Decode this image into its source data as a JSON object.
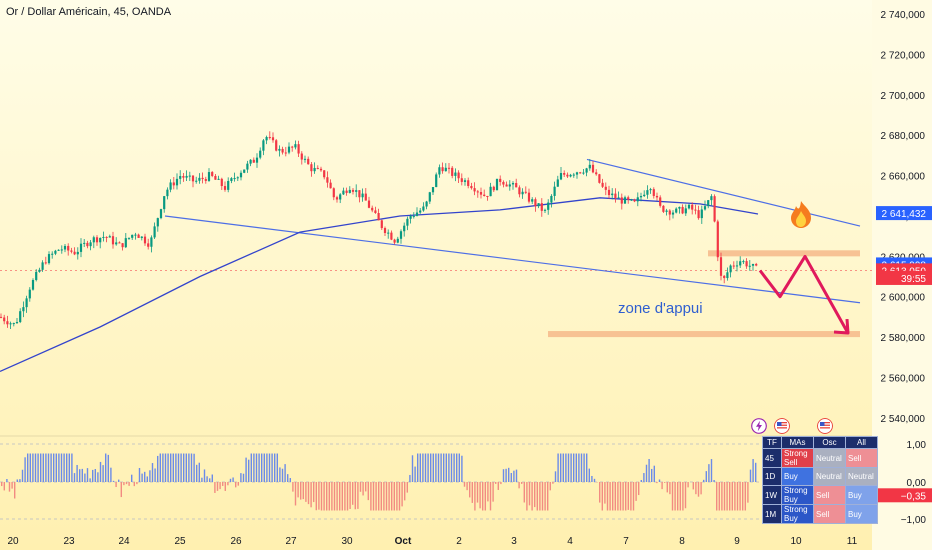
{
  "chart_title": "Or / Dollar Américain, 45, OANDA",
  "chart_data": {
    "type": "candlestick",
    "symbol": "XAUUSD",
    "timeframe": "45",
    "y_axis": {
      "range": [
        2531,
        2747
      ],
      "ticks": [
        "2 740,000",
        "2 720,000",
        "2 700,000",
        "2 680,000",
        "2 660,000",
        "2 640,000",
        "2 620,000",
        "2 600,000",
        "2 580,000",
        "2 560,000",
        "2 540,000"
      ]
    },
    "x_axis": {
      "labels": [
        "20",
        "23",
        "24",
        "25",
        "26",
        "27",
        "30",
        "Oct",
        "2",
        "3",
        "4",
        "7",
        "8",
        "9",
        "10",
        "11"
      ]
    },
    "price_path": [
      {
        "x": 0,
        "y": 2590
      },
      {
        "x": 15,
        "y": 2586
      },
      {
        "x": 30,
        "y": 2605
      },
      {
        "x": 45,
        "y": 2618
      },
      {
        "x": 60,
        "y": 2624
      },
      {
        "x": 75,
        "y": 2622
      },
      {
        "x": 90,
        "y": 2628
      },
      {
        "x": 105,
        "y": 2630
      },
      {
        "x": 120,
        "y": 2625
      },
      {
        "x": 135,
        "y": 2632
      },
      {
        "x": 150,
        "y": 2626
      },
      {
        "x": 165,
        "y": 2652
      },
      {
        "x": 180,
        "y": 2660
      },
      {
        "x": 195,
        "y": 2657
      },
      {
        "x": 210,
        "y": 2660
      },
      {
        "x": 225,
        "y": 2654
      },
      {
        "x": 240,
        "y": 2662
      },
      {
        "x": 255,
        "y": 2668
      },
      {
        "x": 265,
        "y": 2680
      },
      {
        "x": 280,
        "y": 2672
      },
      {
        "x": 295,
        "y": 2674
      },
      {
        "x": 310,
        "y": 2664
      },
      {
        "x": 325,
        "y": 2660
      },
      {
        "x": 335,
        "y": 2648
      },
      {
        "x": 350,
        "y": 2655
      },
      {
        "x": 365,
        "y": 2648
      },
      {
        "x": 380,
        "y": 2636
      },
      {
        "x": 395,
        "y": 2628
      },
      {
        "x": 410,
        "y": 2640
      },
      {
        "x": 425,
        "y": 2644
      },
      {
        "x": 440,
        "y": 2665
      },
      {
        "x": 455,
        "y": 2660
      },
      {
        "x": 470,
        "y": 2656
      },
      {
        "x": 485,
        "y": 2650
      },
      {
        "x": 500,
        "y": 2658
      },
      {
        "x": 515,
        "y": 2654
      },
      {
        "x": 530,
        "y": 2648
      },
      {
        "x": 545,
        "y": 2642
      },
      {
        "x": 560,
        "y": 2660
      },
      {
        "x": 575,
        "y": 2662
      },
      {
        "x": 590,
        "y": 2664
      },
      {
        "x": 605,
        "y": 2652
      },
      {
        "x": 620,
        "y": 2648
      },
      {
        "x": 635,
        "y": 2646
      },
      {
        "x": 650,
        "y": 2656
      },
      {
        "x": 660,
        "y": 2644
      },
      {
        "x": 675,
        "y": 2642
      },
      {
        "x": 690,
        "y": 2644
      },
      {
        "x": 700,
        "y": 2640
      },
      {
        "x": 712,
        "y": 2650
      },
      {
        "x": 718,
        "y": 2620
      },
      {
        "x": 722,
        "y": 2606
      },
      {
        "x": 730,
        "y": 2615
      },
      {
        "x": 740,
        "y": 2618
      },
      {
        "x": 748,
        "y": 2616
      },
      {
        "x": 758,
        "y": 2613
      }
    ],
    "moving_average": [
      {
        "x": 0,
        "y": 2563
      },
      {
        "x": 100,
        "y": 2585
      },
      {
        "x": 200,
        "y": 2610
      },
      {
        "x": 300,
        "y": 2632
      },
      {
        "x": 400,
        "y": 2640
      },
      {
        "x": 500,
        "y": 2643
      },
      {
        "x": 600,
        "y": 2649
      },
      {
        "x": 700,
        "y": 2646
      },
      {
        "x": 758,
        "y": 2641
      }
    ],
    "trendlines": [
      {
        "from": {
          "x": 165,
          "y": 2640
        },
        "to": {
          "x": 860,
          "y": 2597
        }
      },
      {
        "from": {
          "x": 587,
          "y": 2668
        },
        "to": {
          "x": 860,
          "y": 2635
        }
      }
    ],
    "zones": [
      {
        "from_x": 708,
        "to_x": 860,
        "low": 2620,
        "high": 2623
      },
      {
        "from_x": 548,
        "to_x": 860,
        "low": 2580,
        "high": 2583
      }
    ],
    "projection_path": [
      {
        "x": 760,
        "y": 2613
      },
      {
        "x": 780,
        "y": 2600
      },
      {
        "x": 805,
        "y": 2620
      },
      {
        "x": 848,
        "y": 2582
      }
    ],
    "annotations": {
      "zone_label": "zone d'appui"
    },
    "price_labels": [
      {
        "value": "2 641,432",
        "price": 2641.432,
        "color": "#2962ff"
      },
      {
        "value": "2 615,998",
        "price": 2615.998,
        "color": "#2962ff"
      },
      {
        "value": "2 613,050",
        "price": 2613.05,
        "color": "#f23645"
      },
      {
        "value": "39:55",
        "price": 2609.3,
        "color": "#f23645"
      }
    ]
  },
  "oscillator": {
    "axis_labels": [
      "1,00",
      "0,00",
      "−1,00"
    ],
    "current_label": "−0,35",
    "current_value": -0.35,
    "bar_color_positive": "#6b8be8",
    "bar_color_negative": "#f28b82"
  },
  "tech_table": {
    "headers": [
      "TF",
      "MAs",
      "Osc",
      "All"
    ],
    "rows": [
      {
        "tf": "45",
        "mas": "Strong Sell",
        "osc": "Neutral",
        "all": "Sell"
      },
      {
        "tf": "1D",
        "mas": "Buy",
        "osc": "Neutral",
        "all": "Neutral"
      },
      {
        "tf": "1W",
        "mas": "Strong Buy",
        "osc": "Sell",
        "all": "Buy"
      },
      {
        "tf": "1M",
        "mas": "Strong Buy",
        "osc": "Sell",
        "all": "Buy"
      }
    ]
  },
  "colors": {
    "candle_up": "#089981",
    "candle_down": "#f23645",
    "ma_line": "#3344cc",
    "trendline": "#4d6ee6",
    "zone": "#f6b98a",
    "projection": "#e0195c"
  },
  "icons": [
    "lightning-icon",
    "us-flag-icon",
    "us-flag-icon",
    "fire-icon"
  ]
}
